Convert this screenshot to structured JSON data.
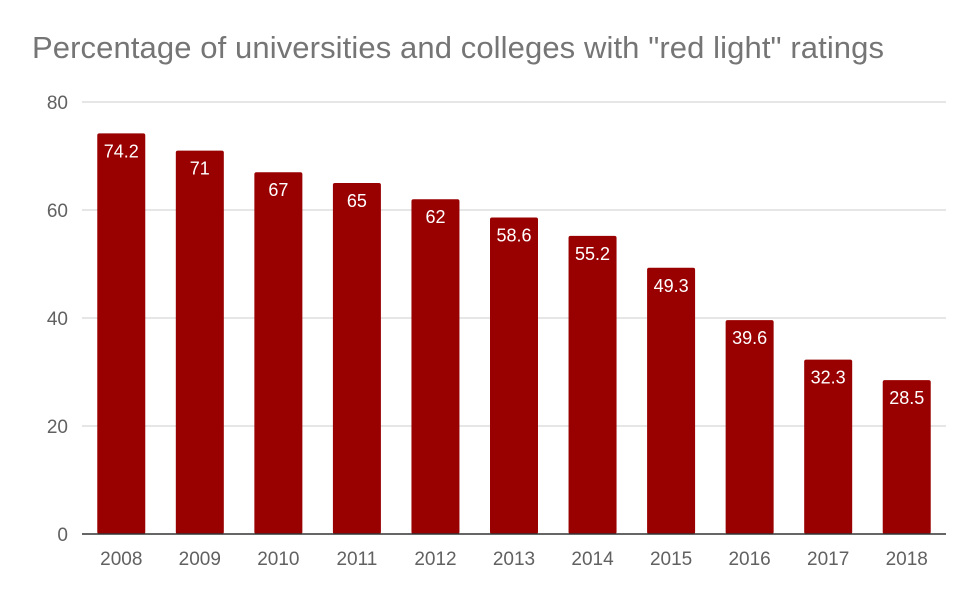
{
  "chart_data": {
    "type": "bar",
    "title": "Percentage of universities and colleges with \"red light\" ratings",
    "xlabel": "",
    "ylabel": "",
    "categories": [
      "2008",
      "2009",
      "2010",
      "2011",
      "2012",
      "2013",
      "2014",
      "2015",
      "2016",
      "2017",
      "2018"
    ],
    "values": [
      74.2,
      71,
      67,
      65,
      62,
      58.6,
      55.2,
      49.3,
      39.6,
      32.3,
      28.5
    ],
    "data_labels": [
      "74.2",
      "71",
      "67",
      "65",
      "62",
      "58.6",
      "55.2",
      "49.3",
      "39.6",
      "32.3",
      "28.5"
    ],
    "ylim": [
      0,
      80
    ],
    "yticks": [
      0,
      20,
      40,
      60,
      80
    ],
    "grid": true,
    "legend": "none",
    "colors": {
      "bar": "#990000",
      "grid": "#cccccc",
      "axis": "#333333",
      "title": "#757575",
      "tick": "#616161",
      "label": "#ffffff"
    }
  }
}
